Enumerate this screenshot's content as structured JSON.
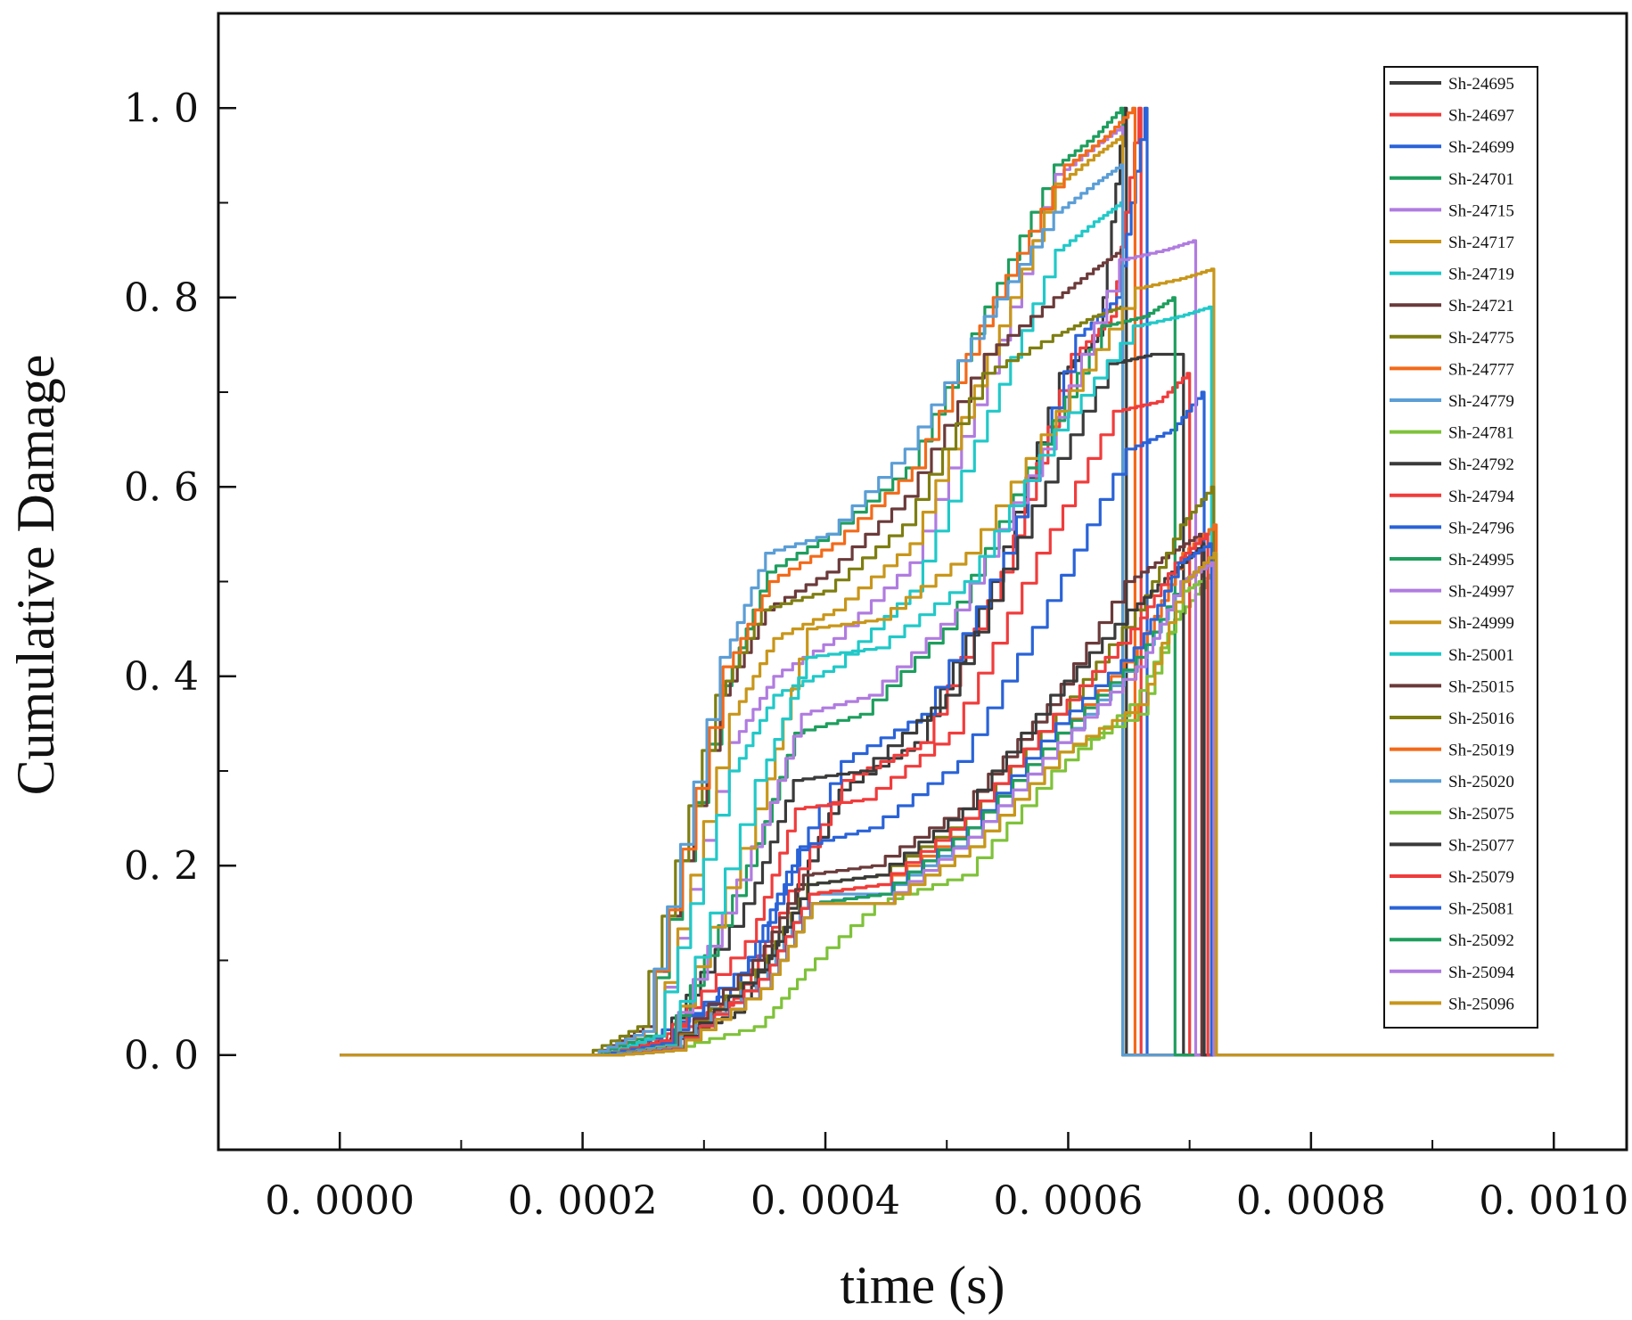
{
  "chart_data": {
    "type": "line",
    "xlabel": "time (s)",
    "ylabel": "Cumulative Damage",
    "xlim": [
      -0.0001,
      0.00106
    ],
    "ylim": [
      -0.1,
      1.1
    ],
    "x_ticks": [
      0.0,
      0.0002,
      0.0004,
      0.0006,
      0.0008,
      0.001
    ],
    "x_tick_labels": [
      "0. 0000",
      "0. 0002",
      "0. 0004",
      "0. 0006",
      "0. 0008",
      "0. 0010"
    ],
    "y_ticks": [
      0.0,
      0.2,
      0.4,
      0.6,
      0.8,
      1.0
    ],
    "y_tick_labels": [
      "0. 0",
      "0. 2",
      "0. 4",
      "0. 6",
      "0. 8",
      "1. 0"
    ],
    "legend_position": "top-right",
    "time_range": [
      0.0,
      0.001
    ],
    "series": [
      {
        "name": "Sh-24695",
        "color": "#3a3a3a",
        "initiation": 0.000225,
        "break": 0.000648,
        "damage": [
          0.0,
          0.012,
          0.045,
          0.13,
          0.28,
          0.33,
          0.5,
          0.72,
          0.76,
          1.0
        ]
      },
      {
        "name": "Sh-24697",
        "color": "#f03c3c",
        "initiation": 0.00022,
        "break": 0.00066,
        "damage": [
          0.0,
          0.015,
          0.06,
          0.15,
          0.29,
          0.33,
          0.51,
          0.74,
          0.78,
          1.0
        ]
      },
      {
        "name": "Sh-24699",
        "color": "#2a63d8",
        "initiation": 0.000215,
        "break": 0.000665,
        "damage": [
          0.0,
          0.018,
          0.07,
          0.17,
          0.31,
          0.36,
          0.53,
          0.76,
          0.8,
          1.0
        ]
      },
      {
        "name": "Sh-24701",
        "color": "#1e9e5e",
        "initiation": 0.000212,
        "break": 0.000645,
        "damage": [
          0.0,
          0.02,
          0.39,
          0.51,
          0.55,
          0.62,
          0.79,
          0.94,
          0.97,
          1.0
        ]
      },
      {
        "name": "Sh-24715",
        "color": "#b07ce0",
        "initiation": 0.00022,
        "break": 0.000645,
        "damage": [
          0.0,
          0.02,
          0.33,
          0.4,
          0.44,
          0.52,
          0.72,
          0.93,
          0.96,
          0.98
        ]
      },
      {
        "name": "Sh-24717",
        "color": "#c8961a",
        "initiation": 0.00022,
        "break": 0.000645,
        "damage": [
          0.0,
          0.02,
          0.36,
          0.44,
          0.47,
          0.54,
          0.74,
          0.92,
          0.95,
          0.97
        ]
      },
      {
        "name": "Sh-24719",
        "color": "#22c8c8",
        "initiation": 0.00022,
        "break": 0.000645,
        "damage": [
          0.0,
          0.02,
          0.3,
          0.38,
          0.41,
          0.49,
          0.68,
          0.85,
          0.88,
          0.9
        ]
      },
      {
        "name": "Sh-24721",
        "color": "#6b3a3a",
        "initiation": 0.00021,
        "break": 0.000645,
        "damage": [
          0.0,
          0.03,
          0.38,
          0.47,
          0.51,
          0.59,
          0.74,
          0.8,
          0.83,
          0.85
        ]
      },
      {
        "name": "Sh-24775",
        "color": "#7e7e12",
        "initiation": 0.000205,
        "break": 0.000645,
        "damage": [
          0.0,
          0.03,
          0.38,
          0.47,
          0.49,
          0.56,
          0.72,
          0.76,
          0.78,
          0.79
        ]
      },
      {
        "name": "Sh-24777",
        "color": "#f26a1a",
        "initiation": 0.00021,
        "break": 0.000655,
        "damage": [
          0.0,
          0.025,
          0.41,
          0.5,
          0.54,
          0.62,
          0.8,
          0.94,
          0.97,
          1.0
        ]
      },
      {
        "name": "Sh-24779",
        "color": "#5b9ed6",
        "initiation": 0.00021,
        "break": 0.000645,
        "damage": [
          0.0,
          0.025,
          0.42,
          0.53,
          0.55,
          0.64,
          0.78,
          0.89,
          0.92,
          0.94
        ]
      },
      {
        "name": "Sh-24781",
        "color": "#7fc23a",
        "initiation": 0.000225,
        "break": 0.000715,
        "damage": [
          0.0,
          0.005,
          0.03,
          0.09,
          0.16,
          0.19,
          0.3,
          0.37,
          0.46,
          0.5
        ]
      },
      {
        "name": "Sh-24792",
        "color": "#3a3a3a",
        "initiation": 0.00022,
        "break": 0.000695,
        "damage": [
          0.0,
          0.015,
          0.16,
          0.29,
          0.3,
          0.38,
          0.58,
          0.73,
          0.74,
          0.74
        ]
      },
      {
        "name": "Sh-24794",
        "color": "#f03c3c",
        "initiation": 0.00022,
        "break": 0.0007,
        "damage": [
          0.0,
          0.015,
          0.12,
          0.26,
          0.27,
          0.34,
          0.53,
          0.68,
          0.69,
          0.72
        ]
      },
      {
        "name": "Sh-24796",
        "color": "#2a63d8",
        "initiation": 0.00022,
        "break": 0.000712,
        "damage": [
          0.0,
          0.012,
          0.1,
          0.22,
          0.24,
          0.31,
          0.48,
          0.64,
          0.66,
          0.7
        ]
      },
      {
        "name": "Sh-24995",
        "color": "#1e9e5e",
        "initiation": 0.000225,
        "break": 0.000688,
        "damage": [
          0.0,
          0.01,
          0.2,
          0.34,
          0.36,
          0.45,
          0.62,
          0.77,
          0.78,
          0.8
        ]
      },
      {
        "name": "Sh-24997",
        "color": "#b07ce0",
        "initiation": 0.000225,
        "break": 0.000705,
        "damage": [
          0.0,
          0.01,
          0.22,
          0.36,
          0.38,
          0.47,
          0.64,
          0.84,
          0.85,
          0.86
        ]
      },
      {
        "name": "Sh-24999",
        "color": "#c8961a",
        "initiation": 0.000225,
        "break": 0.00072,
        "damage": [
          0.0,
          0.01,
          0.26,
          0.45,
          0.46,
          0.53,
          0.68,
          0.81,
          0.82,
          0.83
        ]
      },
      {
        "name": "Sh-25001",
        "color": "#22c8c8",
        "initiation": 0.000225,
        "break": 0.000718,
        "damage": [
          0.0,
          0.01,
          0.29,
          0.42,
          0.43,
          0.5,
          0.66,
          0.77,
          0.78,
          0.79
        ]
      },
      {
        "name": "Sh-25015",
        "color": "#6b3a3a",
        "initiation": 0.000225,
        "break": 0.00071,
        "damage": [
          0.0,
          0.008,
          0.1,
          0.19,
          0.2,
          0.26,
          0.37,
          0.5,
          0.53,
          0.55
        ]
      },
      {
        "name": "Sh-25016",
        "color": "#7e7e12",
        "initiation": 0.000225,
        "break": 0.00072,
        "damage": [
          0.0,
          0.008,
          0.09,
          0.18,
          0.19,
          0.25,
          0.36,
          0.47,
          0.56,
          0.6
        ]
      },
      {
        "name": "Sh-25019",
        "color": "#f26a1a",
        "initiation": 0.000225,
        "break": 0.000722,
        "damage": [
          0.0,
          0.008,
          0.08,
          0.17,
          0.18,
          0.24,
          0.34,
          0.43,
          0.53,
          0.56
        ]
      },
      {
        "name": "Sh-25020",
        "color": "#5b9ed6",
        "initiation": 0.000225,
        "break": 0.000722,
        "damage": [
          0.0,
          0.007,
          0.08,
          0.17,
          0.17,
          0.23,
          0.33,
          0.42,
          0.5,
          0.53
        ]
      },
      {
        "name": "Sh-25075",
        "color": "#7fc23a",
        "initiation": 0.00023,
        "break": 0.000722,
        "damage": [
          0.0,
          0.005,
          0.07,
          0.16,
          0.16,
          0.22,
          0.32,
          0.36,
          0.49,
          0.51
        ]
      },
      {
        "name": "Sh-25077",
        "color": "#3a3a3a",
        "initiation": 0.00023,
        "break": 0.000712,
        "damage": [
          0.0,
          0.006,
          0.09,
          0.18,
          0.19,
          0.26,
          0.38,
          0.47,
          0.51,
          0.54
        ]
      },
      {
        "name": "Sh-25079",
        "color": "#f03c3c",
        "initiation": 0.00023,
        "break": 0.000715,
        "damage": [
          0.0,
          0.006,
          0.08,
          0.17,
          0.18,
          0.25,
          0.36,
          0.45,
          0.52,
          0.55
        ]
      },
      {
        "name": "Sh-25081",
        "color": "#2a63d8",
        "initiation": 0.00023,
        "break": 0.000718,
        "damage": [
          0.0,
          0.005,
          0.07,
          0.16,
          0.17,
          0.24,
          0.35,
          0.43,
          0.52,
          0.54
        ]
      },
      {
        "name": "Sh-25092",
        "color": "#1e9e5e",
        "initiation": 0.00023,
        "break": 0.00072,
        "damage": [
          0.0,
          0.005,
          0.07,
          0.16,
          0.17,
          0.24,
          0.34,
          0.42,
          0.5,
          0.52
        ]
      },
      {
        "name": "Sh-25094",
        "color": "#b07ce0",
        "initiation": 0.00023,
        "break": 0.00072,
        "damage": [
          0.0,
          0.005,
          0.07,
          0.16,
          0.16,
          0.23,
          0.33,
          0.41,
          0.5,
          0.52
        ]
      },
      {
        "name": "Sh-25096",
        "color": "#c8961a",
        "initiation": 0.00023,
        "break": 0.000722,
        "damage": [
          0.0,
          0.005,
          0.07,
          0.16,
          0.16,
          0.22,
          0.32,
          0.37,
          0.5,
          0.53
        ]
      }
    ],
    "damage_time_fractions": [
      0.0,
      0.1,
      0.25,
      0.33,
      0.45,
      0.6,
      0.75,
      0.88,
      0.95,
      1.0
    ]
  }
}
